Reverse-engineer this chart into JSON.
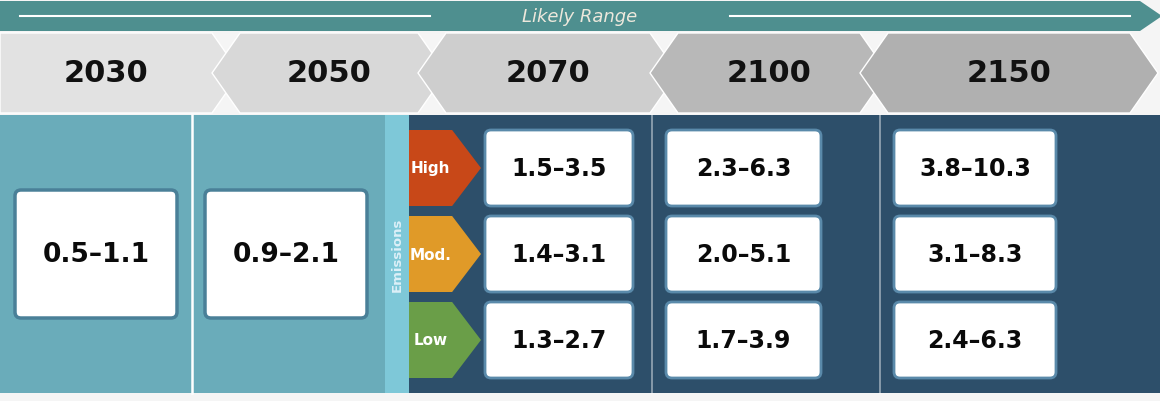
{
  "title_bar_color": "#4e8f8f",
  "title_text": "Likely Range",
  "title_text_color": "#ede8dc",
  "bg_color": "#f5f5f5",
  "teal_bg": "#6aacba",
  "dark_blue_bg": "#2d4f6a",
  "emissions_strip_color": "#7ec8d8",
  "emissions_text_color": "#ddf0f8",
  "cell_border_teal": "#4a8098",
  "cell_border_dark": "#5a8aaa",
  "box_2030": "0.5–1.1",
  "box_2050": "0.9–2.1",
  "data_2070": [
    "1.3–2.7",
    "1.4–3.1",
    "1.5–3.5"
  ],
  "data_2100": [
    "1.7–3.9",
    "2.0–5.1",
    "2.3–6.3"
  ],
  "data_2150": [
    "2.4–6.3",
    "3.1–8.3",
    "3.8–10.3"
  ],
  "emission_labels": [
    "Low",
    "Mod.",
    "High"
  ],
  "emission_colors": [
    "#6a9e48",
    "#e09a28",
    "#c84818"
  ],
  "emission_text_color": "#ffffff",
  "data_text_color": "#0a0a0a",
  "arrow_year_color": "#111111",
  "chevron_colors": [
    "#e2e2e2",
    "#d8d8d8",
    "#cecece",
    "#b8b8b8",
    "#b0b0b0"
  ],
  "figsize": [
    11.6,
    4.02
  ],
  "dpi": 100
}
